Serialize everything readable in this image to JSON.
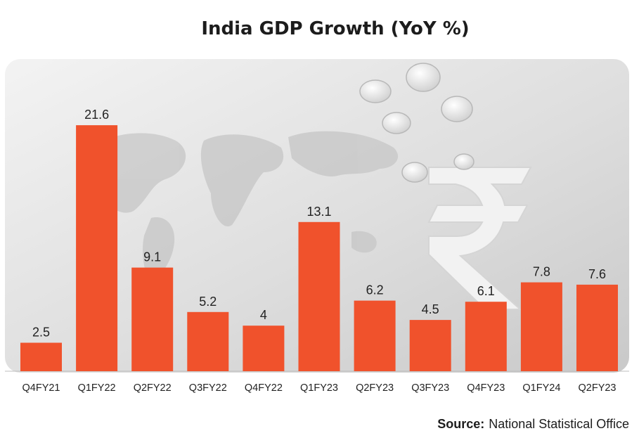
{
  "chart_data": {
    "type": "bar",
    "title": "India GDP Growth (YoY %)",
    "categories": [
      "Q4FY21",
      "Q1FY22",
      "Q2FY22",
      "Q3FY22",
      "Q4FY22",
      "Q1FY23",
      "Q2FY23",
      "Q3FY23",
      "Q4FY23",
      "Q1FY24",
      "Q2FY23"
    ],
    "values": [
      2.5,
      21.6,
      9.1,
      5.2,
      4,
      13.1,
      6.2,
      4.5,
      6.1,
      7.8,
      7.6
    ],
    "value_labels": [
      "2.5",
      "21.6",
      "9.1",
      "5.2",
      "4",
      "13.1",
      "6.2",
      "4.5",
      "6.1",
      "7.8",
      "7.6"
    ],
    "xlabel": "",
    "ylabel": "",
    "ylim": [
      0,
      25
    ],
    "grid": false,
    "bar_color": "#f0522c"
  },
  "source": {
    "label": "Source:",
    "text": "National Statistical Office"
  },
  "background": {
    "description_icons": [
      "world-map-graphic",
      "rupee-symbol-graphic",
      "coins-graphic"
    ]
  }
}
